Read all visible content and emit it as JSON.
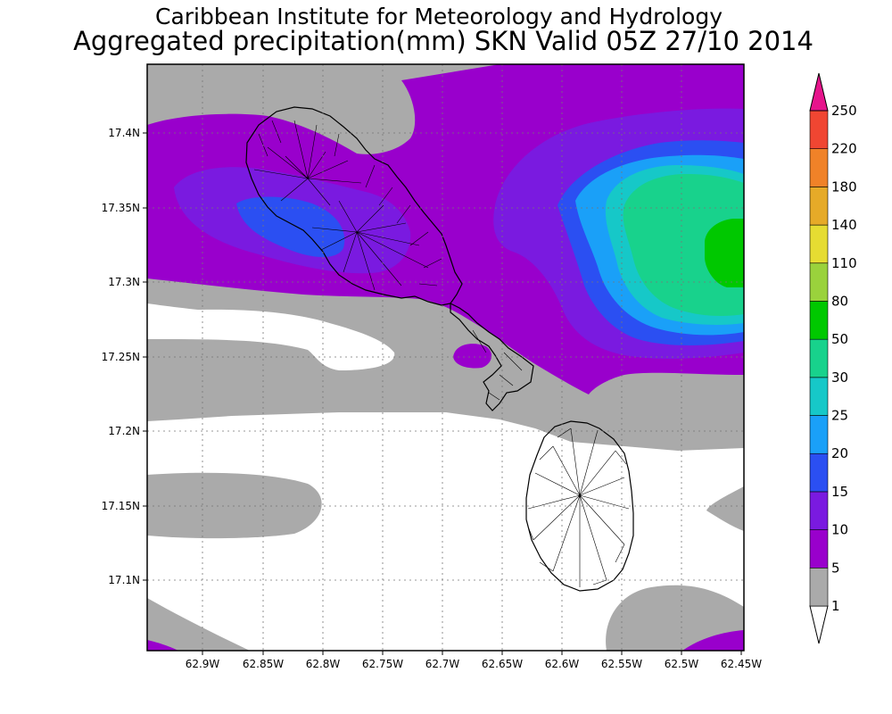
{
  "header": {
    "title": "Caribbean Institute for Meteorology and Hydrology",
    "subtitle": "Aggregated precipitation(mm) SKN Valid 05Z 27/10 2014"
  },
  "map": {
    "region": "St. Kitts and Nevis",
    "lon_ticks": [
      "62.9W",
      "62.85W",
      "62.8W",
      "62.75W",
      "62.7W",
      "62.65W",
      "62.6W",
      "62.55W",
      "62.5W",
      "62.45W"
    ],
    "lat_ticks": [
      "17.4N",
      "17.35N",
      "17.3N",
      "17.25N",
      "17.2N",
      "17.15N",
      "17.1N"
    ],
    "grid": true
  },
  "colorbar": {
    "levels": [
      "1",
      "5",
      "10",
      "15",
      "20",
      "25",
      "30",
      "50",
      "80",
      "110",
      "140",
      "180",
      "220",
      "250"
    ],
    "colors": [
      "#ffffff",
      "#aaaaaa",
      "#9900cc",
      "#7a1ae0",
      "#2b4ff2",
      "#1aa0f8",
      "#16c8c8",
      "#18d28c",
      "#00c800",
      "#9ad23c",
      "#e6dc32",
      "#e6aa28",
      "#f08228",
      "#f04632",
      "#e6148c"
    ]
  }
}
